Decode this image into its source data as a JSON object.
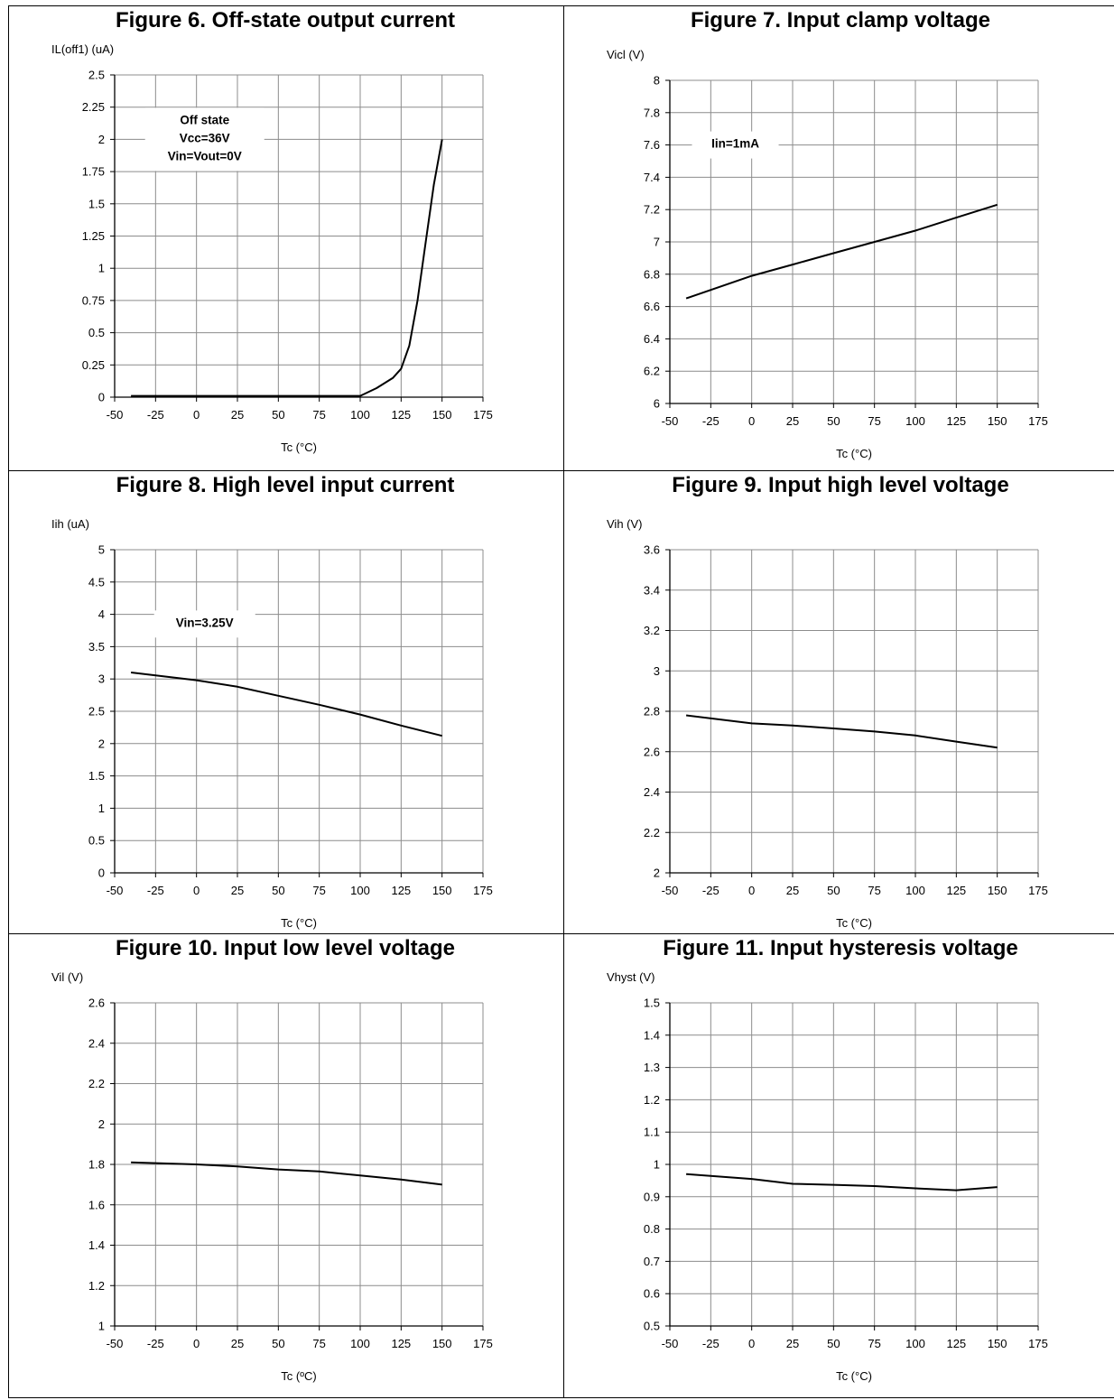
{
  "chart_data": [
    {
      "type": "line",
      "title": "Figure 6. Off-state output current",
      "ylabel": "IL(off1) (uA)",
      "xlabel": "Tc (°C)",
      "xlim": [
        -50,
        175
      ],
      "xticks": [
        -50,
        -25,
        0,
        25,
        50,
        75,
        100,
        125,
        150,
        175
      ],
      "ylim": [
        0,
        2.5
      ],
      "yticks": [
        0,
        0.25,
        0.5,
        0.75,
        1,
        1.25,
        1.5,
        1.75,
        2,
        2.25,
        2.5
      ],
      "grid": true,
      "annotation": [
        "Off state",
        "Vcc=36V",
        "Vin=Vout=0V"
      ],
      "annotation_anchor": [
        5,
        2.0
      ],
      "series": [
        {
          "x": [
            -40,
            -25,
            0,
            25,
            50,
            75,
            100,
            110,
            120,
            125,
            130,
            135,
            140,
            145,
            150
          ],
          "y": [
            0.01,
            0.01,
            0.01,
            0.01,
            0.01,
            0.01,
            0.01,
            0.07,
            0.15,
            0.22,
            0.4,
            0.75,
            1.2,
            1.65,
            2.0
          ]
        }
      ]
    },
    {
      "type": "line",
      "title": "Figure 7. Input clamp voltage",
      "ylabel": "Vicl (V)",
      "xlabel": "Tc (°C)",
      "xlim": [
        -50,
        175
      ],
      "xticks": [
        -50,
        -25,
        0,
        25,
        50,
        75,
        100,
        125,
        150,
        175
      ],
      "ylim": [
        6,
        8
      ],
      "yticks": [
        6,
        6.2,
        6.4,
        6.6,
        6.8,
        7,
        7.2,
        7.4,
        7.6,
        7.8,
        8
      ],
      "grid": true,
      "annotation": [
        "Iin=1mA"
      ],
      "annotation_anchor": [
        -10,
        7.6
      ],
      "series": [
        {
          "x": [
            -40,
            0,
            25,
            50,
            75,
            100,
            125,
            150
          ],
          "y": [
            6.65,
            6.79,
            6.86,
            6.93,
            7.0,
            7.07,
            7.15,
            7.23
          ]
        }
      ]
    },
    {
      "type": "line",
      "title": "Figure 8. High level input current",
      "ylabel": "Iih (uA)",
      "xlabel": "Tc (°C)",
      "xlim": [
        -50,
        175
      ],
      "xticks": [
        -50,
        -25,
        0,
        25,
        50,
        75,
        100,
        125,
        150,
        175
      ],
      "ylim": [
        0,
        5
      ],
      "yticks": [
        0,
        0.5,
        1,
        1.5,
        2,
        2.5,
        3,
        3.5,
        4,
        4.5,
        5
      ],
      "grid": true,
      "annotation": [
        "Vin=3.25V"
      ],
      "annotation_anchor": [
        5,
        3.85
      ],
      "series": [
        {
          "x": [
            -40,
            0,
            25,
            50,
            75,
            100,
            125,
            150
          ],
          "y": [
            3.1,
            2.98,
            2.88,
            2.74,
            2.6,
            2.45,
            2.28,
            2.12
          ]
        }
      ]
    },
    {
      "type": "line",
      "title": "Figure 9. Input high level voltage",
      "ylabel": "Vih (V)",
      "xlabel": "Tc (°C)",
      "xlim": [
        -50,
        175
      ],
      "xticks": [
        -50,
        -25,
        0,
        25,
        50,
        75,
        100,
        125,
        150,
        175
      ],
      "ylim": [
        2,
        3.6
      ],
      "yticks": [
        2,
        2.2,
        2.4,
        2.6,
        2.8,
        3,
        3.2,
        3.4,
        3.6
      ],
      "grid": true,
      "annotation": [],
      "series": [
        {
          "x": [
            -40,
            0,
            25,
            50,
            75,
            100,
            125,
            150
          ],
          "y": [
            2.78,
            2.74,
            2.73,
            2.715,
            2.7,
            2.68,
            2.65,
            2.62
          ]
        }
      ]
    },
    {
      "type": "line",
      "title": "Figure 10. Input low level voltage",
      "ylabel": "Vil (V)",
      "xlabel": "Tc (ºC)",
      "xlim": [
        -50,
        175
      ],
      "xticks": [
        -50,
        -25,
        0,
        25,
        50,
        75,
        100,
        125,
        150,
        175
      ],
      "ylim": [
        1,
        2.6
      ],
      "yticks": [
        1,
        1.2,
        1.4,
        1.6,
        1.8,
        2,
        2.2,
        2.4,
        2.6
      ],
      "grid": true,
      "annotation": [],
      "series": [
        {
          "x": [
            -40,
            0,
            25,
            50,
            75,
            100,
            125,
            150
          ],
          "y": [
            1.81,
            1.8,
            1.79,
            1.775,
            1.765,
            1.745,
            1.725,
            1.7
          ]
        }
      ]
    },
    {
      "type": "line",
      "title": "Figure 11. Input hysteresis voltage",
      "ylabel": "Vhyst (V)",
      "xlabel": "Tc (°C)",
      "xlim": [
        -50,
        175
      ],
      "xticks": [
        -50,
        -25,
        0,
        25,
        50,
        75,
        100,
        125,
        150,
        175
      ],
      "ylim": [
        0.5,
        1.5
      ],
      "yticks": [
        0.5,
        0.6,
        0.7,
        0.8,
        0.9,
        1,
        1.1,
        1.2,
        1.3,
        1.4,
        1.5
      ],
      "grid": true,
      "annotation": [],
      "series": [
        {
          "x": [
            -40,
            0,
            25,
            50,
            75,
            100,
            125,
            150
          ],
          "y": [
            0.97,
            0.955,
            0.94,
            0.937,
            0.933,
            0.926,
            0.92,
            0.93
          ]
        }
      ]
    }
  ]
}
